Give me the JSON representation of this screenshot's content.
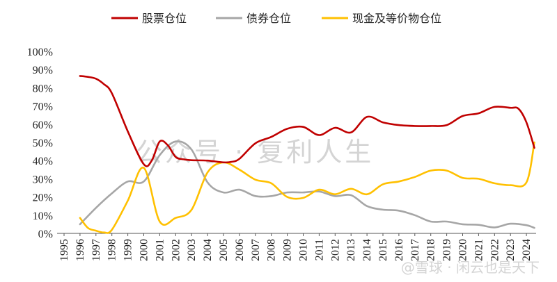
{
  "chart_data": {
    "type": "line",
    "title": "",
    "xlabel": "",
    "ylabel": "",
    "ylim": [
      0,
      100
    ],
    "y_ticks": [
      "0%",
      "10%",
      "20%",
      "30%",
      "40%",
      "50%",
      "60%",
      "70%",
      "80%",
      "90%",
      "100%"
    ],
    "x_ticks": [
      "1995",
      "1996",
      "1997",
      "1998",
      "1999",
      "2000",
      "2001",
      "2002",
      "2003",
      "2004",
      "2005",
      "2006",
      "2007",
      "2008",
      "2009",
      "2010",
      "2011",
      "2012",
      "2013",
      "2014",
      "2015",
      "2016",
      "2017",
      "2018",
      "2019",
      "2020",
      "2021",
      "2022",
      "2023",
      "2024"
    ],
    "legend_position": "top",
    "series": [
      {
        "name": "股票仓位",
        "color": "#C00000",
        "x": [
          1996,
          1996.5,
          1997,
          1997.5,
          1998,
          1999,
          2000,
          2000.5,
          2001,
          2001.5,
          2002,
          2002.5,
          2003,
          2004,
          2005,
          2005.5,
          2006,
          2007,
          2008,
          2009,
          2010,
          2011,
          2012,
          2013,
          2014,
          2015,
          2016,
          2017,
          2018,
          2019,
          2020,
          2021,
          2022,
          2023,
          2023.5,
          2024,
          2024.5
        ],
        "values": [
          86.5,
          86,
          85,
          82,
          77,
          56,
          38,
          40,
          50.5,
          48.5,
          42,
          40.7,
          40.2,
          40,
          39,
          39.3,
          41,
          49.5,
          53,
          57.5,
          58.5,
          54,
          58,
          55.5,
          64,
          61,
          59.5,
          59,
          59,
          59.5,
          64.5,
          66,
          69.5,
          69,
          68.5,
          61,
          47
        ]
      },
      {
        "name": "债券仓位",
        "color": "#A6A6A6",
        "x": [
          1996,
          1997,
          1998,
          1999,
          2000,
          2001,
          2002,
          2003,
          2004,
          2005,
          2006,
          2007,
          2008,
          2009,
          2010,
          2011,
          2012,
          2013,
          2014,
          2015,
          2016,
          2017,
          2018,
          2019,
          2020,
          2021,
          2022,
          2023,
          2024,
          2024.5
        ],
        "values": [
          5,
          14,
          22,
          28.5,
          28.5,
          43,
          50.5,
          46,
          28,
          22.5,
          24,
          20.5,
          20.5,
          22.5,
          22.5,
          23,
          20.5,
          21,
          15,
          13,
          12.5,
          10,
          6.5,
          6.5,
          5,
          4.7,
          3.3,
          5.3,
          4.5,
          3
        ]
      },
      {
        "name": "现金及等价物仓位",
        "color": "#FFC000",
        "x": [
          1996,
          1996.5,
          1997,
          1997.5,
          1998,
          1999,
          2000,
          2001,
          2002,
          2003,
          2004,
          2005,
          2006,
          2007,
          2008,
          2009,
          2010,
          2011,
          2012,
          2013,
          2014,
          2015,
          2016,
          2017,
          2018,
          2019,
          2020,
          2021,
          2022,
          2023,
          2024,
          2024.5
        ],
        "values": [
          8.5,
          3,
          1.5,
          0.5,
          2,
          18,
          36,
          6.5,
          8.5,
          13,
          33.5,
          39,
          35,
          29.5,
          27.5,
          20,
          19.5,
          24,
          21.5,
          24.5,
          21.5,
          27,
          28.5,
          31,
          34.5,
          34.5,
          30.5,
          30,
          27.5,
          26.5,
          28,
          50
        ]
      }
    ]
  },
  "watermark": {
    "text": "公众号 · 复利人生",
    "credit": "@雪球 · 闲云也是天下"
  }
}
